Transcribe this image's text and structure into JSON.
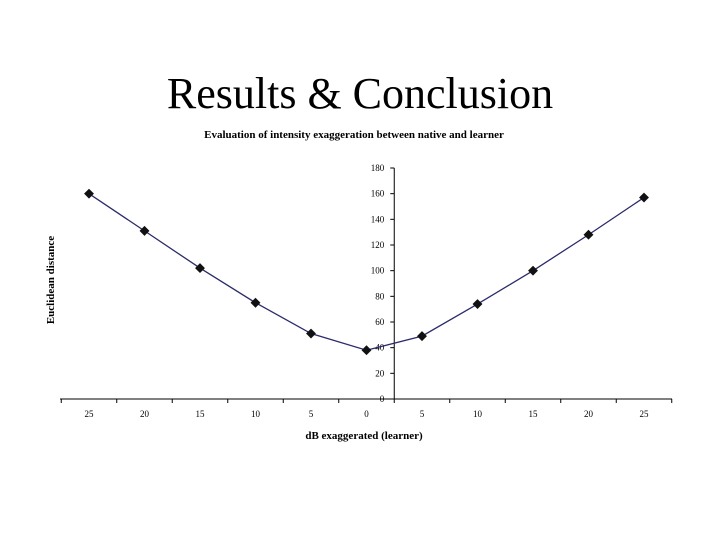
{
  "slide": {
    "title": "Results & Conclusion"
  },
  "chart_data": {
    "type": "line",
    "title": "Evaluation of intensity exaggeration between native and learner",
    "xlabel": "dB exaggerated (learner)",
    "ylabel": "Euclidean distance",
    "categories": [
      "25",
      "20",
      "15",
      "10",
      "5",
      "0",
      "5",
      "10",
      "15",
      "20",
      "25"
    ],
    "series": [
      {
        "values": [
          160,
          131,
          102,
          75,
          51,
          38,
          49,
          74,
          100,
          128,
          157
        ]
      }
    ],
    "ylim": [
      0,
      180
    ],
    "yticks": [
      0,
      20,
      40,
      60,
      80,
      100,
      120,
      140,
      160,
      180
    ],
    "y_axis_at_category_index": 5.5,
    "grid": false,
    "legend": "none",
    "colors": {
      "line": "#2b2b6b",
      "marker": "#111111",
      "axis": "#000000"
    }
  }
}
